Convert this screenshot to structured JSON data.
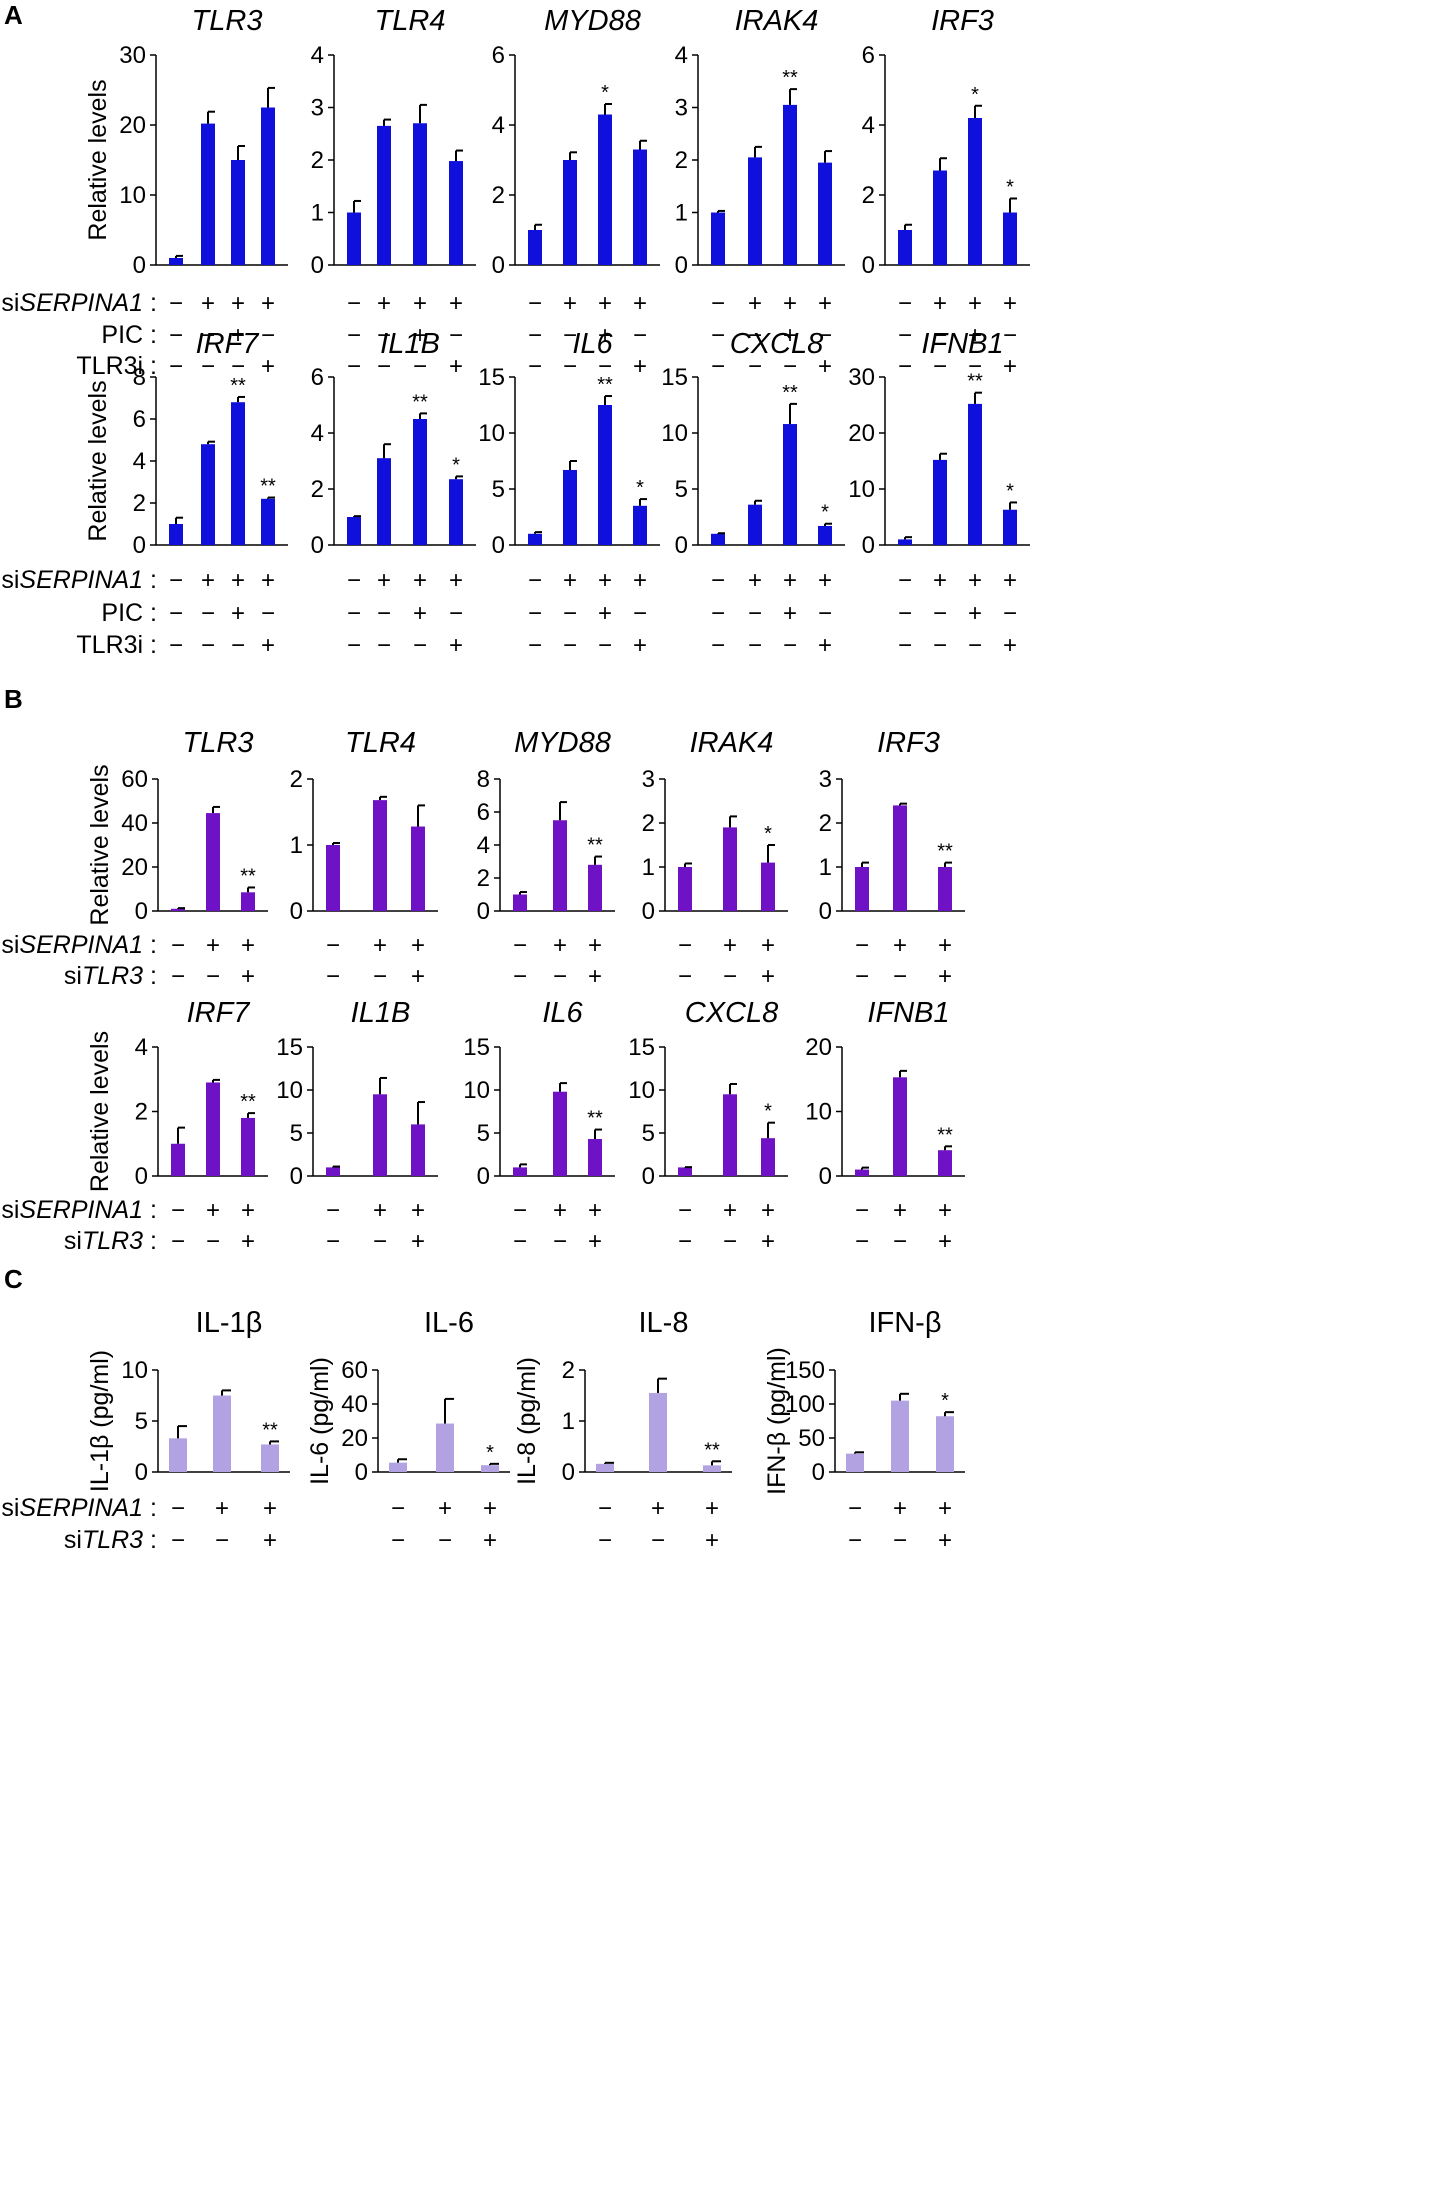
{
  "panels": [
    {
      "letter": "A",
      "color": "#1010dd"
    },
    {
      "letter": "B",
      "color": "#6f12c6"
    },
    {
      "letter": "C",
      "color": "#b3a2e1"
    }
  ],
  "row_labels": {
    "A": [
      "siSERPINA1 :",
      "PIC :",
      "TLR3i :"
    ],
    "B": [
      "siSERPINA1 :",
      "siTLR3 :"
    ],
    "C": [
      "siSERPINA1 :",
      "siTLR3 :"
    ]
  },
  "chart_data": [
    {
      "id": "A1",
      "panel": "A",
      "type": "bar",
      "title": "TLR3",
      "italic": true,
      "ylabel": "Relative levels",
      "ylim": [
        0,
        30
      ],
      "yticks": [
        0,
        10,
        20,
        30
      ],
      "values": [
        1,
        20.2,
        15,
        22.5
      ],
      "errors": [
        0.3,
        1.7,
        2,
        2.8
      ],
      "sig": [
        "",
        "",
        "",
        ""
      ],
      "conditions": [
        [
          "−",
          "+",
          "+",
          "+"
        ],
        [
          "−",
          "−",
          "+",
          "−"
        ],
        [
          "−",
          "−",
          "−",
          "+"
        ]
      ]
    },
    {
      "id": "A2",
      "panel": "A",
      "type": "bar",
      "title": "TLR4",
      "italic": true,
      "ylabel": "",
      "ylim": [
        0,
        4
      ],
      "yticks": [
        0,
        1,
        2,
        3,
        4
      ],
      "values": [
        1,
        2.65,
        2.7,
        1.98
      ],
      "errors": [
        0.22,
        0.12,
        0.35,
        0.2
      ],
      "sig": [
        "",
        "",
        "",
        ""
      ],
      "conditions": [
        [
          "−",
          "+",
          "+",
          "+"
        ],
        [
          "−",
          "−",
          "+",
          "−"
        ],
        [
          "−",
          "−",
          "−",
          "+"
        ]
      ]
    },
    {
      "id": "A3",
      "panel": "A",
      "type": "bar",
      "title": "MYD88",
      "italic": true,
      "ylabel": "",
      "ylim": [
        0,
        6
      ],
      "yticks": [
        0,
        2,
        4,
        6
      ],
      "values": [
        1,
        3,
        4.3,
        3.3
      ],
      "errors": [
        0.15,
        0.22,
        0.3,
        0.25
      ],
      "sig": [
        "",
        "",
        "*",
        ""
      ],
      "conditions": [
        [
          "−",
          "+",
          "+",
          "+"
        ],
        [
          "−",
          "−",
          "+",
          "−"
        ],
        [
          "−",
          "−",
          "−",
          "+"
        ]
      ]
    },
    {
      "id": "A4",
      "panel": "A",
      "type": "bar",
      "title": "IRAK4",
      "italic": true,
      "ylabel": "",
      "ylim": [
        0,
        4
      ],
      "yticks": [
        0,
        1,
        2,
        3,
        4
      ],
      "values": [
        1,
        2.05,
        3.05,
        1.95
      ],
      "errors": [
        0.03,
        0.2,
        0.3,
        0.22
      ],
      "sig": [
        "",
        "",
        "**",
        ""
      ],
      "conditions": [
        [
          "−",
          "+",
          "+",
          "+"
        ],
        [
          "−",
          "−",
          "+",
          "−"
        ],
        [
          "−",
          "−",
          "−",
          "+"
        ]
      ]
    },
    {
      "id": "A5",
      "panel": "A",
      "type": "bar",
      "title": "IRF3",
      "italic": true,
      "ylabel": "",
      "ylim": [
        0,
        6
      ],
      "yticks": [
        0,
        2,
        4,
        6
      ],
      "values": [
        1,
        2.7,
        4.2,
        1.5
      ],
      "errors": [
        0.15,
        0.35,
        0.35,
        0.4
      ],
      "sig": [
        "",
        "",
        "*",
        "*"
      ],
      "conditions": [
        [
          "−",
          "+",
          "+",
          "+"
        ],
        [
          "−",
          "−",
          "+",
          "−"
        ],
        [
          "−",
          "−",
          "−",
          "+"
        ]
      ]
    },
    {
      "id": "A6",
      "panel": "A",
      "type": "bar",
      "title": "IRF7",
      "italic": true,
      "ylabel": "Relative levels",
      "ylim": [
        0,
        8
      ],
      "yticks": [
        0,
        2,
        4,
        6,
        8
      ],
      "values": [
        1,
        4.8,
        6.8,
        2.2
      ],
      "errors": [
        0.3,
        0.12,
        0.25,
        0.06
      ],
      "sig": [
        "",
        "",
        "**",
        "**"
      ],
      "conditions": [
        [
          "−",
          "+",
          "+",
          "+"
        ],
        [
          "−",
          "−",
          "+",
          "−"
        ],
        [
          "−",
          "−",
          "−",
          "+"
        ]
      ]
    },
    {
      "id": "A7",
      "panel": "A",
      "type": "bar",
      "title": "IL1B",
      "italic": true,
      "ylabel": "",
      "ylim": [
        0,
        6
      ],
      "yticks": [
        0,
        2,
        4,
        6
      ],
      "values": [
        1,
        3.1,
        4.5,
        2.35
      ],
      "errors": [
        0.03,
        0.5,
        0.2,
        0.1
      ],
      "sig": [
        "",
        "",
        "**",
        "*"
      ],
      "conditions": [
        [
          "−",
          "+",
          "+",
          "+"
        ],
        [
          "−",
          "−",
          "+",
          "−"
        ],
        [
          "−",
          "−",
          "−",
          "+"
        ]
      ]
    },
    {
      "id": "A8",
      "panel": "A",
      "type": "bar",
      "title": "IL6",
      "italic": true,
      "ylabel": "",
      "ylim": [
        0,
        15
      ],
      "yticks": [
        0,
        5,
        10,
        15
      ],
      "values": [
        1,
        6.7,
        12.5,
        3.5
      ],
      "errors": [
        0.15,
        0.8,
        0.8,
        0.6
      ],
      "sig": [
        "",
        "",
        "**",
        "*"
      ],
      "conditions": [
        [
          "−",
          "+",
          "+",
          "+"
        ],
        [
          "−",
          "−",
          "+",
          "−"
        ],
        [
          "−",
          "−",
          "−",
          "+"
        ]
      ]
    },
    {
      "id": "A9",
      "panel": "A",
      "type": "bar",
      "title": "CXCL8",
      "italic": true,
      "ylabel": "",
      "ylim": [
        0,
        15
      ],
      "yticks": [
        0,
        5,
        10,
        15
      ],
      "values": [
        1,
        3.6,
        10.8,
        1.7
      ],
      "errors": [
        0.05,
        0.35,
        1.8,
        0.2
      ],
      "sig": [
        "",
        "",
        "**",
        "*"
      ],
      "conditions": [
        [
          "−",
          "+",
          "+",
          "+"
        ],
        [
          "−",
          "−",
          "+",
          "−"
        ],
        [
          "−",
          "−",
          "−",
          "+"
        ]
      ]
    },
    {
      "id": "A10",
      "panel": "A",
      "type": "bar",
      "title": "IFNB1",
      "italic": true,
      "ylabel": "",
      "ylim": [
        0,
        30
      ],
      "yticks": [
        0,
        10,
        20,
        30
      ],
      "values": [
        1,
        15.2,
        25.2,
        6.3
      ],
      "errors": [
        0.4,
        1.1,
        2,
        1.3
      ],
      "sig": [
        "",
        "",
        "**",
        "*"
      ],
      "conditions": [
        [
          "−",
          "+",
          "+",
          "+"
        ],
        [
          "−",
          "−",
          "+",
          "−"
        ],
        [
          "−",
          "−",
          "−",
          "+"
        ]
      ]
    },
    {
      "id": "B1",
      "panel": "B",
      "type": "bar",
      "title": "TLR3",
      "italic": true,
      "ylabel": "Relative levels",
      "ylim": [
        0,
        60
      ],
      "yticks": [
        0,
        20,
        40,
        60
      ],
      "values": [
        1,
        44.5,
        8.5
      ],
      "errors": [
        0.3,
        2.8,
        2.2
      ],
      "sig": [
        "",
        "",
        "**"
      ],
      "conditions": [
        [
          "−",
          "+",
          "+"
        ],
        [
          "−",
          "−",
          "+"
        ]
      ]
    },
    {
      "id": "B2",
      "panel": "B",
      "type": "bar",
      "title": "TLR4",
      "italic": true,
      "ylabel": "",
      "ylim": [
        0,
        2
      ],
      "yticks": [
        0,
        1,
        2
      ],
      "values": [
        1,
        1.68,
        1.28
      ],
      "errors": [
        0.03,
        0.05,
        0.32
      ],
      "sig": [
        "",
        "",
        ""
      ],
      "conditions": [
        [
          "−",
          "+",
          "+"
        ],
        [
          "−",
          "−",
          "+"
        ]
      ]
    },
    {
      "id": "B3",
      "panel": "B",
      "type": "bar",
      "title": "MYD88",
      "italic": true,
      "ylabel": "",
      "ylim": [
        0,
        8
      ],
      "yticks": [
        0,
        2,
        4,
        6,
        8
      ],
      "values": [
        1,
        5.5,
        2.8
      ],
      "errors": [
        0.15,
        1.1,
        0.5
      ],
      "sig": [
        "",
        "",
        "**"
      ],
      "conditions": [
        [
          "−",
          "+",
          "+"
        ],
        [
          "−",
          "−",
          "+"
        ]
      ]
    },
    {
      "id": "B4",
      "panel": "B",
      "type": "bar",
      "title": "IRAK4",
      "italic": true,
      "ylabel": "",
      "ylim": [
        0,
        3
      ],
      "yticks": [
        0,
        1,
        2,
        3
      ],
      "values": [
        1,
        1.9,
        1.1
      ],
      "errors": [
        0.08,
        0.25,
        0.4
      ],
      "sig": [
        "",
        "",
        "*"
      ],
      "conditions": [
        [
          "−",
          "+",
          "+"
        ],
        [
          "−",
          "−",
          "+"
        ]
      ]
    },
    {
      "id": "B5",
      "panel": "B",
      "type": "bar",
      "title": "IRF3",
      "italic": true,
      "ylabel": "",
      "ylim": [
        0,
        3
      ],
      "yticks": [
        0,
        1,
        2,
        3
      ],
      "values": [
        1,
        2.4,
        1
      ],
      "errors": [
        0.1,
        0.04,
        0.1
      ],
      "sig": [
        "",
        "",
        "**"
      ],
      "conditions": [
        [
          "−",
          "+",
          "+"
        ],
        [
          "−",
          "−",
          "+"
        ]
      ]
    },
    {
      "id": "B6",
      "panel": "B",
      "type": "bar",
      "title": "IRF7",
      "italic": true,
      "ylabel": "Relative levels",
      "ylim": [
        0,
        4
      ],
      "yticks": [
        0,
        2,
        4
      ],
      "values": [
        1,
        2.9,
        1.8
      ],
      "errors": [
        0.5,
        0.08,
        0.15
      ],
      "sig": [
        "",
        "",
        "**"
      ],
      "conditions": [
        [
          "−",
          "+",
          "+"
        ],
        [
          "−",
          "−",
          "+"
        ]
      ]
    },
    {
      "id": "B7",
      "panel": "B",
      "type": "bar",
      "title": "IL1B",
      "italic": true,
      "ylabel": "",
      "ylim": [
        0,
        15
      ],
      "yticks": [
        0,
        5,
        10,
        15
      ],
      "values": [
        1,
        9.5,
        6
      ],
      "errors": [
        0.1,
        1.9,
        2.6
      ],
      "sig": [
        "",
        "",
        ""
      ],
      "conditions": [
        [
          "−",
          "+",
          "+"
        ],
        [
          "−",
          "−",
          "+"
        ]
      ]
    },
    {
      "id": "B8",
      "panel": "B",
      "type": "bar",
      "title": "IL6",
      "italic": true,
      "ylabel": "",
      "ylim": [
        0,
        15
      ],
      "yticks": [
        0,
        5,
        10,
        15
      ],
      "values": [
        1,
        9.8,
        4.3
      ],
      "errors": [
        0.35,
        1,
        1.1
      ],
      "sig": [
        "",
        "",
        "**"
      ],
      "conditions": [
        [
          "−",
          "+",
          "+"
        ],
        [
          "−",
          "−",
          "+"
        ]
      ]
    },
    {
      "id": "B9",
      "panel": "B",
      "type": "bar",
      "title": "CXCL8",
      "italic": true,
      "ylabel": "",
      "ylim": [
        0,
        15
      ],
      "yticks": [
        0,
        5,
        10,
        15
      ],
      "values": [
        1,
        9.5,
        4.4
      ],
      "errors": [
        0.03,
        1.2,
        1.8
      ],
      "sig": [
        "",
        "",
        "*"
      ],
      "conditions": [
        [
          "−",
          "+",
          "+"
        ],
        [
          "−",
          "−",
          "+"
        ]
      ]
    },
    {
      "id": "B10",
      "panel": "B",
      "type": "bar",
      "title": "IFNB1",
      "italic": true,
      "ylabel": "",
      "ylim": [
        0,
        20
      ],
      "yticks": [
        0,
        10,
        20
      ],
      "values": [
        1,
        15.3,
        4
      ],
      "errors": [
        0.3,
        1,
        0.6
      ],
      "sig": [
        "",
        "",
        "**"
      ],
      "conditions": [
        [
          "−",
          "+",
          "+"
        ],
        [
          "−",
          "−",
          "+"
        ]
      ]
    },
    {
      "id": "C1",
      "panel": "C",
      "type": "bar",
      "title": "IL-1β",
      "italic": false,
      "ylabel": "IL-1β (pg/ml)",
      "ylim": [
        0,
        10
      ],
      "yticks": [
        0,
        5,
        10
      ],
      "values": [
        3.3,
        7.5,
        2.7
      ],
      "errors": [
        1.2,
        0.5,
        0.3
      ],
      "sig": [
        "",
        "",
        "**"
      ],
      "conditions": [
        [
          "−",
          "+",
          "+"
        ],
        [
          "−",
          "−",
          "+"
        ]
      ]
    },
    {
      "id": "C2",
      "panel": "C",
      "type": "bar",
      "title": "IL-6",
      "italic": false,
      "ylabel": "IL-6 (pg/ml)",
      "ylim": [
        0,
        60
      ],
      "yticks": [
        0,
        20,
        40,
        60
      ],
      "values": [
        5.5,
        28.5,
        4
      ],
      "errors": [
        2,
        14.5,
        0.8
      ],
      "sig": [
        "",
        "",
        "*"
      ],
      "conditions": [
        [
          "−",
          "+",
          "+"
        ],
        [
          "−",
          "−",
          "+"
        ]
      ]
    },
    {
      "id": "C3",
      "panel": "C",
      "type": "bar",
      "title": "IL-8",
      "italic": false,
      "ylabel": "IL-8 (pg/ml)",
      "ylim": [
        0,
        2
      ],
      "yticks": [
        0,
        1,
        2
      ],
      "values": [
        0.16,
        1.55,
        0.13
      ],
      "errors": [
        0.02,
        0.28,
        0.08
      ],
      "sig": [
        "",
        "",
        "**"
      ],
      "conditions": [
        [
          "−",
          "+",
          "+"
        ],
        [
          "−",
          "−",
          "+"
        ]
      ]
    },
    {
      "id": "C4",
      "panel": "C",
      "type": "bar",
      "title": "IFN-β",
      "italic": false,
      "ylabel": "IFN-β (pg/ml)",
      "ylim": [
        0,
        150
      ],
      "yticks": [
        0,
        50,
        100,
        150
      ],
      "values": [
        27,
        105,
        82
      ],
      "errors": [
        2,
        10,
        6
      ],
      "sig": [
        "",
        "",
        "*"
      ],
      "conditions": [
        [
          "−",
          "+",
          "+"
        ],
        [
          "−",
          "−",
          "+"
        ]
      ]
    }
  ]
}
